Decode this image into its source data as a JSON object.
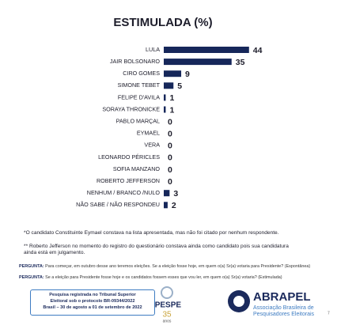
{
  "chart_data": {
    "type": "bar",
    "orientation": "horizontal",
    "title": "ESTIMULADA (%)",
    "categories": [
      "LULA",
      "JAIR BOLSONARO",
      "CIRO GOMES",
      "SIMONE TEBET",
      "FELIPE D'AVILA",
      "SORAYA THRONICKE",
      "PABLO MARÇAL",
      "EYMAEL",
      "VERA",
      "LEONARDO PÉRICLES",
      "SOFIA MANZANO",
      "ROBERTO JEFFERSON",
      "NENHUM / BRANCO /NULO",
      "NÃO SABE / NÃO RESPONDEU"
    ],
    "values": [
      44,
      35,
      9,
      5,
      1,
      1,
      0,
      0,
      0,
      0,
      0,
      0,
      3,
      2
    ],
    "color": "#16275a"
  },
  "notes": [
    "*O candidato Constituinte Eymael constava na lista apresentada, mas não foi citado por nenhum respondente.",
    "** Roberto Jefferson no momento do registro do questionário constava ainda como candidato pois sua candidatura ainda está em julgamento."
  ],
  "questions": [
    {
      "label": "PERGUNTA:",
      "text": "Para começar, em outubro desse ano teremos eleições. Se a eleição fosse hoje, em quem o(a) Sr(a) votaria para Presidente? (Espontânea)"
    },
    {
      "label": "PERGUNTA:",
      "text": "Se a eleição para Presidente fosse hoje e os candidatos fossem esses que vou ler, em quem o(a) Sr(a) votaria? (Estimulada)"
    }
  ],
  "registration": [
    "Pesquisa registrada no Tribunal Superior",
    "Eleitoral sob o protocolo BR-09344/2022",
    "Brasil – 30 de agosto a 01 de setembro de 2022"
  ],
  "logos": {
    "ipespe": "IPESPE",
    "ipespe_years": "35",
    "ipespe_anos": "anos",
    "abrapel": "ABRAPEL",
    "abrapel_sub": [
      "Associação Brasileira de",
      "Pesquisadores Eleitorais"
    ]
  },
  "page_number": "7"
}
